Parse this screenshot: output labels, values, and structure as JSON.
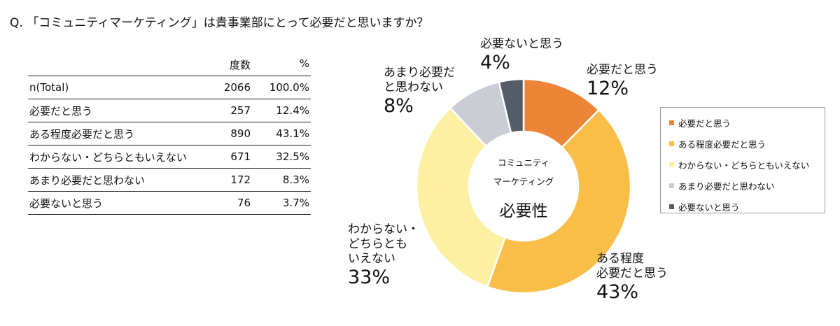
{
  "question": "Q. 「コミュニティマーケティング」は貴事業部にとって必要だと思いますか？",
  "table": {
    "headers": [
      "",
      "度数",
      "%"
    ],
    "rows": [
      {
        "label": "n(Total)",
        "count": "2066",
        "pct": "100.0%"
      },
      {
        "label": "必要だと思う",
        "count": "257",
        "pct": "12.4%"
      },
      {
        "label": "ある程度必要だと思う",
        "count": "890",
        "pct": "43.1%"
      },
      {
        "label": "わからない・どちらともいえない",
        "count": "671",
        "pct": "32.5%"
      },
      {
        "label": "あまり必要だと思わない",
        "count": "172",
        "pct": "8.3%"
      },
      {
        "label": "必要ないと思う",
        "count": "76",
        "pct": "3.7%"
      }
    ]
  },
  "chart_data": {
    "type": "pie",
    "donut": true,
    "center_text": [
      "コミュニティ",
      "マーケティング",
      "必要性"
    ],
    "categories": [
      "必要だと思う",
      "ある程度必要だと思う",
      "わからない・どちらともいえない",
      "あまり必要だと思わない",
      "必要ないと思う"
    ],
    "values": [
      12.4,
      43.1,
      32.5,
      8.3,
      3.7
    ],
    "colors": [
      "#ED8536",
      "#F9BE47",
      "#FDF0A3",
      "#CBCDD5",
      "#545C68"
    ],
    "slice_labels": [
      {
        "lines": [
          "必要だと思う"
        ],
        "pct": "12%"
      },
      {
        "lines": [
          "ある程度",
          "必要だと思う"
        ],
        "pct": "43%"
      },
      {
        "lines": [
          "わからない・",
          "どちらとも",
          "いえない"
        ],
        "pct": "33%"
      },
      {
        "lines": [
          "あまり必要だ",
          "と思わない"
        ],
        "pct": "8%"
      },
      {
        "lines": [
          "必要ないと思う"
        ],
        "pct": "4%"
      }
    ],
    "legend_position": "right"
  }
}
